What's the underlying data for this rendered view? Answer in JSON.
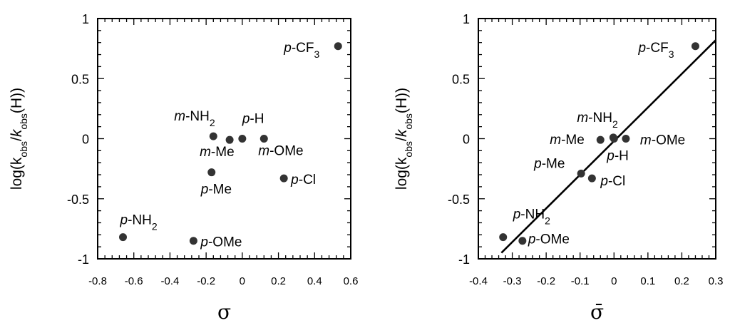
{
  "chart_data": [
    {
      "type": "scatter",
      "xlabel": "σ",
      "ylabel": {
        "pre": "log(k",
        "sub1": "obs",
        "mid": "/",
        "italic": "k",
        "sub2": "obs",
        "post": "(H))"
      },
      "xlim": [
        -0.8,
        0.6
      ],
      "ylim": [
        -1,
        1
      ],
      "xticks": [
        "-0.8",
        "-0.6",
        "-0.4",
        "-0.2",
        "0",
        "0.2",
        "0.4",
        "0.6"
      ],
      "yticks": [
        "-1",
        "-0.5",
        "0",
        "0.5",
        "1"
      ],
      "grid": false,
      "points": [
        {
          "prefix": "p",
          "rest": "-CF",
          "sub": "3",
          "x": 0.53,
          "y": 0.77
        },
        {
          "prefix": "m",
          "rest": "-NH",
          "sub": "2",
          "x": -0.16,
          "y": 0.02
        },
        {
          "prefix": "p",
          "rest": "-H",
          "sub": "",
          "x": 0.0,
          "y": 0.0
        },
        {
          "prefix": "m",
          "rest": "-Me",
          "sub": "",
          "x": -0.07,
          "y": -0.01
        },
        {
          "prefix": "m",
          "rest": "-OMe",
          "sub": "",
          "x": 0.12,
          "y": 0.0
        },
        {
          "prefix": "p",
          "rest": "-Cl",
          "sub": "",
          "x": 0.23,
          "y": -0.33
        },
        {
          "prefix": "p",
          "rest": "-Me",
          "sub": "",
          "x": -0.17,
          "y": -0.28
        },
        {
          "prefix": "p",
          "rest": "-NH",
          "sub": "2",
          "x": -0.66,
          "y": -0.82
        },
        {
          "prefix": "p",
          "rest": "-OMe",
          "sub": "",
          "x": -0.27,
          "y": -0.85
        }
      ]
    },
    {
      "type": "scatter",
      "xlabel": "σ̄",
      "ylabel": {
        "pre": "log(k",
        "sub1": "obs",
        "mid": "/",
        "italic": "k",
        "sub2": "obs",
        "post": "(H))"
      },
      "xlim": [
        -0.4,
        0.3
      ],
      "ylim": [
        -1,
        1
      ],
      "xticks": [
        "-0.4",
        "-0.3",
        "-0.2",
        "-0.1",
        "0",
        "0.1",
        "0.2",
        "0.3"
      ],
      "yticks": [
        "-1",
        "-0.5",
        "0",
        "0.5",
        "1"
      ],
      "grid": false,
      "fit_line": {
        "x": [
          -0.332,
          0.3
        ],
        "y": [
          -0.95,
          0.82
        ]
      },
      "points": [
        {
          "prefix": "p",
          "rest": "-CF",
          "sub": "3",
          "x": 0.24,
          "y": 0.77
        },
        {
          "prefix": "m",
          "rest": "-NH",
          "sub": "2",
          "x": -0.002,
          "y": 0.01
        },
        {
          "prefix": "m",
          "rest": "-Me",
          "sub": "",
          "x": -0.04,
          "y": -0.01
        },
        {
          "prefix": "p",
          "rest": "-H",
          "sub": "",
          "x": 0.0,
          "y": 0.0
        },
        {
          "prefix": "m",
          "rest": "-OMe",
          "sub": "",
          "x": 0.035,
          "y": 0.0
        },
        {
          "prefix": "p",
          "rest": "-Me",
          "sub": "",
          "x": -0.097,
          "y": -0.29
        },
        {
          "prefix": "p",
          "rest": "-Cl",
          "sub": "",
          "x": -0.065,
          "y": -0.33
        },
        {
          "prefix": "p",
          "rest": "-NH",
          "sub": "2",
          "x": -0.327,
          "y": -0.82
        },
        {
          "prefix": "p",
          "rest": "-OMe",
          "sub": "",
          "x": -0.27,
          "y": -0.85
        }
      ]
    }
  ]
}
